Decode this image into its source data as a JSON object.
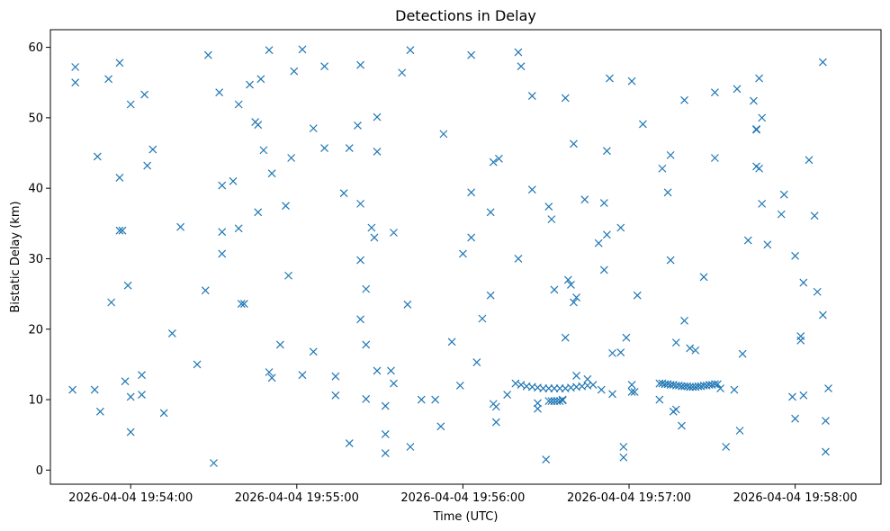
{
  "chart_data": {
    "type": "scatter",
    "title": "Detections in Delay",
    "xlabel": "Time (UTC)",
    "ylabel": "Bistatic Delay (km)",
    "x_axis_type": "datetime",
    "x_ticks": [
      "2026-04-04 19:54:00",
      "2026-04-04 19:55:00",
      "2026-04-04 19:56:00",
      "2026-04-04 19:57:00",
      "2026-04-04 19:58:00"
    ],
    "xlim": [
      "2026-04-04 19:53:31",
      "2026-04-04 19:58:31"
    ],
    "y_ticks": [
      "0",
      "10",
      "20",
      "30",
      "40",
      "50",
      "60"
    ],
    "ylim": [
      -2,
      62.5
    ],
    "grid": false,
    "legend": "none",
    "marker": "x",
    "color": "#1f77b4",
    "series": [
      {
        "points": [
          [
            "2026-04-04 19:53:39",
            11.4
          ],
          [
            "2026-04-04 19:53:40",
            57.2
          ],
          [
            "2026-04-04 19:53:40",
            55.0
          ],
          [
            "2026-04-04 19:53:47",
            11.4
          ],
          [
            "2026-04-04 19:53:48",
            44.5
          ],
          [
            "2026-04-04 19:53:49",
            8.3
          ],
          [
            "2026-04-04 19:53:52",
            55.5
          ],
          [
            "2026-04-04 19:53:53",
            23.8
          ],
          [
            "2026-04-04 19:53:56",
            57.8
          ],
          [
            "2026-04-04 19:53:56",
            41.5
          ],
          [
            "2026-04-04 19:53:56",
            34.0
          ],
          [
            "2026-04-04 19:53:57",
            34.0
          ],
          [
            "2026-04-04 19:53:58",
            12.6
          ],
          [
            "2026-04-04 19:53:59",
            26.2
          ],
          [
            "2026-04-04 19:54:00",
            51.9
          ],
          [
            "2026-04-04 19:54:00",
            10.4
          ],
          [
            "2026-04-04 19:54:00",
            5.4
          ],
          [
            "2026-04-04 19:54:04",
            13.5
          ],
          [
            "2026-04-04 19:54:04",
            10.7
          ],
          [
            "2026-04-04 19:54:05",
            53.3
          ],
          [
            "2026-04-04 19:54:06",
            43.2
          ],
          [
            "2026-04-04 19:54:08",
            45.5
          ],
          [
            "2026-04-04 19:54:12",
            8.1
          ],
          [
            "2026-04-04 19:54:15",
            19.4
          ],
          [
            "2026-04-04 19:54:18",
            34.5
          ],
          [
            "2026-04-04 19:54:24",
            15.0
          ],
          [
            "2026-04-04 19:54:27",
            25.5
          ],
          [
            "2026-04-04 19:54:28",
            58.9
          ],
          [
            "2026-04-04 19:54:30",
            1.0
          ],
          [
            "2026-04-04 19:54:32",
            53.6
          ],
          [
            "2026-04-04 19:54:33",
            40.4
          ],
          [
            "2026-04-04 19:54:33",
            33.8
          ],
          [
            "2026-04-04 19:54:33",
            30.7
          ],
          [
            "2026-04-04 19:54:37",
            41.0
          ],
          [
            "2026-04-04 19:54:39",
            51.9
          ],
          [
            "2026-04-04 19:54:39",
            34.3
          ],
          [
            "2026-04-04 19:54:40",
            23.6
          ],
          [
            "2026-04-04 19:54:41",
            23.6
          ],
          [
            "2026-04-04 19:54:43",
            54.7
          ],
          [
            "2026-04-04 19:54:45",
            49.4
          ],
          [
            "2026-04-04 19:54:46",
            49.0
          ],
          [
            "2026-04-04 19:54:46",
            36.6
          ],
          [
            "2026-04-04 19:54:47",
            55.5
          ],
          [
            "2026-04-04 19:54:48",
            45.4
          ],
          [
            "2026-04-04 19:54:50",
            59.6
          ],
          [
            "2026-04-04 19:54:50",
            13.9
          ],
          [
            "2026-04-04 19:54:51",
            13.1
          ],
          [
            "2026-04-04 19:54:51",
            42.1
          ],
          [
            "2026-04-04 19:54:54",
            17.8
          ],
          [
            "2026-04-04 19:54:56",
            37.5
          ],
          [
            "2026-04-04 19:54:57",
            27.6
          ],
          [
            "2026-04-04 19:54:58",
            44.3
          ],
          [
            "2026-04-04 19:54:59",
            56.6
          ],
          [
            "2026-04-04 19:55:02",
            59.7
          ],
          [
            "2026-04-04 19:55:02",
            13.5
          ],
          [
            "2026-04-04 19:55:06",
            48.5
          ],
          [
            "2026-04-04 19:55:06",
            16.8
          ],
          [
            "2026-04-04 19:55:10",
            57.3
          ],
          [
            "2026-04-04 19:55:10",
            45.7
          ],
          [
            "2026-04-04 19:55:14",
            13.3
          ],
          [
            "2026-04-04 19:55:14",
            10.6
          ],
          [
            "2026-04-04 19:55:17",
            39.3
          ],
          [
            "2026-04-04 19:55:19",
            45.7
          ],
          [
            "2026-04-04 19:55:19",
            3.8
          ],
          [
            "2026-04-04 19:55:22",
            48.9
          ],
          [
            "2026-04-04 19:55:23",
            57.5
          ],
          [
            "2026-04-04 19:55:23",
            37.8
          ],
          [
            "2026-04-04 19:55:23",
            29.8
          ],
          [
            "2026-04-04 19:55:23",
            21.4
          ],
          [
            "2026-04-04 19:55:25",
            25.7
          ],
          [
            "2026-04-04 19:55:25",
            17.8
          ],
          [
            "2026-04-04 19:55:25",
            10.1
          ],
          [
            "2026-04-04 19:55:27",
            34.4
          ],
          [
            "2026-04-04 19:55:28",
            33.0
          ],
          [
            "2026-04-04 19:55:29",
            50.1
          ],
          [
            "2026-04-04 19:55:29",
            45.2
          ],
          [
            "2026-04-04 19:55:29",
            14.1
          ],
          [
            "2026-04-04 19:55:32",
            9.1
          ],
          [
            "2026-04-04 19:55:32",
            5.1
          ],
          [
            "2026-04-04 19:55:32",
            2.4
          ],
          [
            "2026-04-04 19:55:34",
            14.1
          ],
          [
            "2026-04-04 19:55:35",
            33.7
          ],
          [
            "2026-04-04 19:55:35",
            12.3
          ],
          [
            "2026-04-04 19:55:38",
            56.4
          ],
          [
            "2026-04-04 19:55:40",
            23.5
          ],
          [
            "2026-04-04 19:55:41",
            59.6
          ],
          [
            "2026-04-04 19:55:41",
            3.3
          ],
          [
            "2026-04-04 19:55:45",
            10.0
          ],
          [
            "2026-04-04 19:55:50",
            10.0
          ],
          [
            "2026-04-04 19:55:52",
            6.2
          ],
          [
            "2026-04-04 19:55:53",
            47.7
          ],
          [
            "2026-04-04 19:55:56",
            18.2
          ],
          [
            "2026-04-04 19:55:59",
            12.0
          ],
          [
            "2026-04-04 19:56:00",
            30.7
          ],
          [
            "2026-04-04 19:56:03",
            58.9
          ],
          [
            "2026-04-04 19:56:03",
            39.4
          ],
          [
            "2026-04-04 19:56:03",
            33.0
          ],
          [
            "2026-04-04 19:56:05",
            15.3
          ],
          [
            "2026-04-04 19:56:07",
            21.5
          ],
          [
            "2026-04-04 19:56:10",
            36.6
          ],
          [
            "2026-04-04 19:56:10",
            24.8
          ],
          [
            "2026-04-04 19:56:11",
            43.7
          ],
          [
            "2026-04-04 19:56:11",
            9.4
          ],
          [
            "2026-04-04 19:56:12",
            6.8
          ],
          [
            "2026-04-04 19:56:12",
            9.0
          ],
          [
            "2026-04-04 19:56:13",
            44.2
          ],
          [
            "2026-04-04 19:56:16",
            10.7
          ],
          [
            "2026-04-04 19:56:20",
            59.3
          ],
          [
            "2026-04-04 19:56:20",
            30.0
          ],
          [
            "2026-04-04 19:56:21",
            57.3
          ],
          [
            "2026-04-04 19:56:25",
            53.1
          ],
          [
            "2026-04-04 19:56:25",
            39.8
          ],
          [
            "2026-04-04 19:56:27",
            8.7
          ],
          [
            "2026-04-04 19:56:27",
            9.5
          ],
          [
            "2026-04-04 19:56:30",
            1.5
          ],
          [
            "2026-04-04 19:56:31",
            37.4
          ],
          [
            "2026-04-04 19:56:32",
            35.6
          ],
          [
            "2026-04-04 19:56:33",
            25.6
          ],
          [
            "2026-04-04 19:56:36",
            10.0
          ],
          [
            "2026-04-04 19:56:37",
            52.8
          ],
          [
            "2026-04-04 19:56:37",
            18.8
          ],
          [
            "2026-04-04 19:56:38",
            27.0
          ],
          [
            "2026-04-04 19:56:39",
            26.3
          ],
          [
            "2026-04-04 19:56:40",
            46.3
          ],
          [
            "2026-04-04 19:56:40",
            23.8
          ],
          [
            "2026-04-04 19:56:41",
            24.5
          ],
          [
            "2026-04-04 19:56:41",
            13.4
          ],
          [
            "2026-04-04 19:56:44",
            38.4
          ],
          [
            "2026-04-04 19:56:45",
            12.9
          ],
          [
            "2026-04-04 19:56:49",
            32.2
          ],
          [
            "2026-04-04 19:56:50",
            11.4
          ],
          [
            "2026-04-04 19:56:51",
            37.9
          ],
          [
            "2026-04-04 19:56:51",
            28.4
          ],
          [
            "2026-04-04 19:56:52",
            45.3
          ],
          [
            "2026-04-04 19:56:52",
            33.4
          ],
          [
            "2026-04-04 19:56:53",
            55.6
          ],
          [
            "2026-04-04 19:56:54",
            16.6
          ],
          [
            "2026-04-04 19:56:54",
            10.8
          ],
          [
            "2026-04-04 19:56:57",
            16.7
          ],
          [
            "2026-04-04 19:56:57",
            34.4
          ],
          [
            "2026-04-04 19:56:58",
            3.3
          ],
          [
            "2026-04-04 19:56:58",
            1.8
          ],
          [
            "2026-04-04 19:56:59",
            18.8
          ],
          [
            "2026-04-04 19:57:01",
            55.2
          ],
          [
            "2026-04-04 19:57:01",
            12.1
          ],
          [
            "2026-04-04 19:57:01",
            11.1
          ],
          [
            "2026-04-04 19:57:02",
            11.1
          ],
          [
            "2026-04-04 19:57:03",
            24.8
          ],
          [
            "2026-04-04 19:57:05",
            49.1
          ],
          [
            "2026-04-04 19:57:11",
            10.0
          ],
          [
            "2026-04-04 19:57:12",
            42.8
          ],
          [
            "2026-04-04 19:57:14",
            39.4
          ],
          [
            "2026-04-04 19:57:15",
            44.7
          ],
          [
            "2026-04-04 19:57:15",
            29.8
          ],
          [
            "2026-04-04 19:57:16",
            8.3
          ],
          [
            "2026-04-04 19:57:17",
            18.1
          ],
          [
            "2026-04-04 19:57:17",
            8.6
          ],
          [
            "2026-04-04 19:57:19",
            6.3
          ],
          [
            "2026-04-04 19:57:20",
            52.5
          ],
          [
            "2026-04-04 19:57:20",
            21.2
          ],
          [
            "2026-04-04 19:57:22",
            17.3
          ],
          [
            "2026-04-04 19:57:24",
            17.0
          ],
          [
            "2026-04-04 19:57:27",
            27.4
          ],
          [
            "2026-04-04 19:57:31",
            44.3
          ],
          [
            "2026-04-04 19:57:31",
            53.6
          ],
          [
            "2026-04-04 19:57:33",
            11.6
          ],
          [
            "2026-04-04 19:57:35",
            3.3
          ],
          [
            "2026-04-04 19:57:38",
            11.4
          ],
          [
            "2026-04-04 19:57:39",
            54.1
          ],
          [
            "2026-04-04 19:57:40",
            5.6
          ],
          [
            "2026-04-04 19:57:41",
            16.5
          ],
          [
            "2026-04-04 19:57:43",
            32.6
          ],
          [
            "2026-04-04 19:57:45",
            52.4
          ],
          [
            "2026-04-04 19:57:46",
            48.4
          ],
          [
            "2026-04-04 19:57:46",
            48.3
          ],
          [
            "2026-04-04 19:57:46",
            43.1
          ],
          [
            "2026-04-04 19:57:47",
            55.6
          ],
          [
            "2026-04-04 19:57:47",
            42.8
          ],
          [
            "2026-04-04 19:57:48",
            37.8
          ],
          [
            "2026-04-04 19:57:48",
            50.0
          ],
          [
            "2026-04-04 19:57:50",
            32.0
          ],
          [
            "2026-04-04 19:57:55",
            36.3
          ],
          [
            "2026-04-04 19:57:56",
            39.1
          ],
          [
            "2026-04-04 19:57:59",
            10.4
          ],
          [
            "2026-04-04 19:58:00",
            30.4
          ],
          [
            "2026-04-04 19:58:00",
            7.3
          ],
          [
            "2026-04-04 19:58:02",
            19.0
          ],
          [
            "2026-04-04 19:58:02",
            18.4
          ],
          [
            "2026-04-04 19:58:03",
            10.6
          ],
          [
            "2026-04-04 19:58:03",
            26.6
          ],
          [
            "2026-04-04 19:58:05",
            44.0
          ],
          [
            "2026-04-04 19:58:07",
            36.1
          ],
          [
            "2026-04-04 19:58:08",
            25.3
          ],
          [
            "2026-04-04 19:58:10",
            57.9
          ],
          [
            "2026-04-04 19:58:10",
            22.0
          ],
          [
            "2026-04-04 19:58:11",
            2.6
          ],
          [
            "2026-04-04 19:58:11",
            7.0
          ],
          [
            "2026-04-04 19:58:12",
            11.6
          ],
          [
            "2026-04-04 19:56:19",
            12.3
          ],
          [
            "2026-04-04 19:56:21",
            12.1
          ],
          [
            "2026-04-04 19:56:23",
            11.9
          ],
          [
            "2026-04-04 19:56:25",
            11.8
          ],
          [
            "2026-04-04 19:56:27",
            11.7
          ],
          [
            "2026-04-04 19:56:29",
            11.6
          ],
          [
            "2026-04-04 19:56:31",
            11.6
          ],
          [
            "2026-04-04 19:56:33",
            11.6
          ],
          [
            "2026-04-04 19:56:35",
            11.6
          ],
          [
            "2026-04-04 19:56:37",
            11.6
          ],
          [
            "2026-04-04 19:56:39",
            11.7
          ],
          [
            "2026-04-04 19:56:41",
            11.8
          ],
          [
            "2026-04-04 19:56:43",
            11.9
          ],
          [
            "2026-04-04 19:56:45",
            12.0
          ],
          [
            "2026-04-04 19:56:47",
            12.1
          ],
          [
            "2026-04-04 19:56:31",
            9.8
          ],
          [
            "2026-04-04 19:56:32",
            9.8
          ],
          [
            "2026-04-04 19:56:33",
            9.8
          ],
          [
            "2026-04-04 19:56:34",
            9.8
          ],
          [
            "2026-04-04 19:56:35",
            9.8
          ],
          [
            "2026-04-04 19:56:36",
            9.9
          ],
          [
            "2026-04-04 19:57:11",
            12.3
          ],
          [
            "2026-04-04 19:57:12",
            12.3
          ],
          [
            "2026-04-04 19:57:13",
            12.2
          ],
          [
            "2026-04-04 19:57:14",
            12.2
          ],
          [
            "2026-04-04 19:57:15",
            12.1
          ],
          [
            "2026-04-04 19:57:16",
            12.1
          ],
          [
            "2026-04-04 19:57:17",
            12.0
          ],
          [
            "2026-04-04 19:57:18",
            12.0
          ],
          [
            "2026-04-04 19:57:19",
            11.9
          ],
          [
            "2026-04-04 19:57:20",
            11.9
          ],
          [
            "2026-04-04 19:57:21",
            11.9
          ],
          [
            "2026-04-04 19:57:22",
            11.8
          ],
          [
            "2026-04-04 19:57:23",
            11.8
          ],
          [
            "2026-04-04 19:57:24",
            11.8
          ],
          [
            "2026-04-04 19:57:25",
            11.9
          ],
          [
            "2026-04-04 19:57:26",
            11.9
          ],
          [
            "2026-04-04 19:57:27",
            12.0
          ],
          [
            "2026-04-04 19:57:28",
            12.0
          ],
          [
            "2026-04-04 19:57:29",
            12.1
          ],
          [
            "2026-04-04 19:57:30",
            12.1
          ],
          [
            "2026-04-04 19:57:31",
            12.2
          ],
          [
            "2026-04-04 19:57:32",
            12.2
          ]
        ]
      }
    ]
  }
}
